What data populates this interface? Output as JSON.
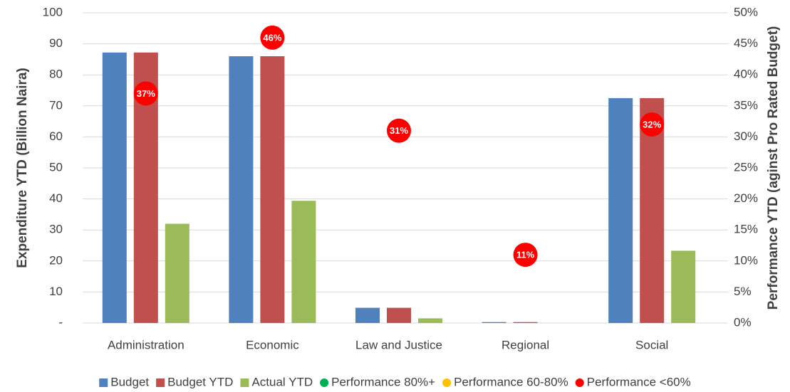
{
  "chart_data": {
    "type": "bar",
    "categories": [
      "Administration",
      "Economic",
      "Law and Justice",
      "Regional",
      "Social"
    ],
    "y_label": "Expenditure YTD (Billion Naira)",
    "y2_label": "Performance YTD (aginst Pro Rated Budget)",
    "series": [
      {
        "name": "Budget",
        "color": "#4f81bd",
        "values": [
          87.2,
          86,
          4.9,
          0.3,
          72.5
        ]
      },
      {
        "name": "Budget YTD",
        "color": "#c0504d",
        "values": [
          87.2,
          86,
          4.9,
          0.3,
          72.5
        ]
      },
      {
        "name": "Actual YTD",
        "color": "#9bbb59",
        "values": [
          32,
          39.4,
          1.5,
          0,
          23.3
        ]
      },
      {
        "name": "Performance 80%+",
        "color": "#00b050",
        "type": "scatter",
        "axis": "y2",
        "values": [
          null,
          null,
          null,
          null,
          null
        ]
      },
      {
        "name": "Performance 60-80%",
        "color": "#ffc000",
        "type": "scatter",
        "axis": "y2",
        "values": [
          null,
          null,
          null,
          null,
          null
        ]
      },
      {
        "name": "Performance <60%",
        "color": "#ff0000",
        "type": "scatter",
        "axis": "y2",
        "values": [
          37,
          46,
          31,
          11,
          32
        ],
        "value_labels": [
          "37%",
          "46%",
          "31%",
          "11%",
          "32%"
        ]
      }
    ],
    "ylim": [
      0,
      100
    ],
    "yticks": [
      {
        "value": 0,
        "label": "-"
      },
      10,
      20,
      30,
      40,
      50,
      60,
      70,
      80,
      90,
      100
    ],
    "y2lim": [
      0,
      50
    ],
    "y2ticks": [
      {
        "value": 0,
        "label": "0%"
      },
      {
        "value": 5,
        "label": "5%"
      },
      {
        "value": 10,
        "label": "10%"
      },
      {
        "value": 15,
        "label": "15%"
      },
      {
        "value": 20,
        "label": "20%"
      },
      {
        "value": 25,
        "label": "25%"
      },
      {
        "value": 30,
        "label": "30%"
      },
      {
        "value": 35,
        "label": "35%"
      },
      {
        "value": 40,
        "label": "40%"
      },
      {
        "value": 45,
        "label": "45%"
      },
      {
        "value": 50,
        "label": "50%"
      }
    ],
    "grid": true,
    "legend": "bottom"
  }
}
